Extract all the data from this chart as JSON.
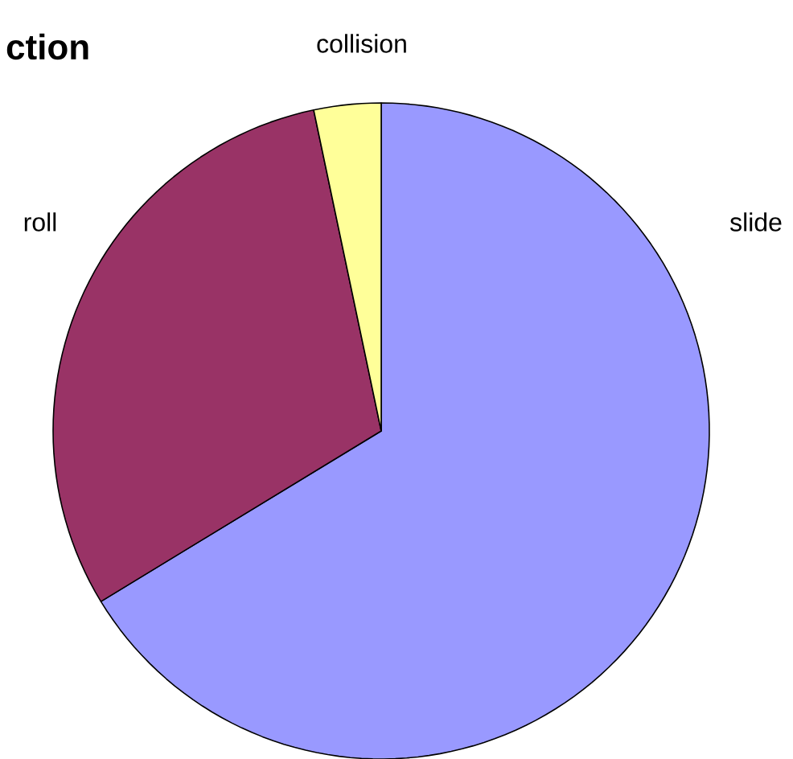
{
  "chart_data": {
    "type": "pie",
    "title": "ction",
    "categories": [
      "slide",
      "roll",
      "collision"
    ],
    "values": [
      66.3,
      30.4,
      3.3
    ],
    "colors": [
      "#9999ff",
      "#993366",
      "#ffff99"
    ]
  }
}
